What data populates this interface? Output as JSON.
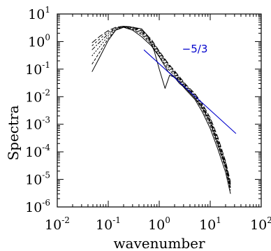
{
  "chart_data": {
    "type": "line",
    "title": "",
    "xlabel": "wavenumber",
    "ylabel": "Spectra",
    "xscale": "log",
    "yscale": "log",
    "xlim": [
      0.01,
      100
    ],
    "ylim": [
      1e-06,
      10
    ],
    "grid": false,
    "x_ticks": [
      {
        "base": "10",
        "exp": "-2",
        "value": 0.01
      },
      {
        "base": "10",
        "exp": "-1",
        "value": 0.1
      },
      {
        "base": "10",
        "exp": "0",
        "value": 1
      },
      {
        "base": "10",
        "exp": "1",
        "value": 10
      },
      {
        "base": "10",
        "exp": "2",
        "value": 100
      }
    ],
    "y_ticks": [
      {
        "base": "10",
        "exp": "-6",
        "value": 1e-06
      },
      {
        "base": "10",
        "exp": "-5",
        "value": 1e-05
      },
      {
        "base": "10",
        "exp": "-4",
        "value": 0.0001
      },
      {
        "base": "10",
        "exp": "-3",
        "value": 0.001
      },
      {
        "base": "10",
        "exp": "-2",
        "value": 0.01
      },
      {
        "base": "10",
        "exp": "-1",
        "value": 0.1
      },
      {
        "base": "10",
        "exp": "0",
        "value": 1
      },
      {
        "base": "10",
        "exp": "1",
        "value": 10
      }
    ],
    "series": [
      {
        "dash": "solid",
        "color": "#000000",
        "x": [
          0.048,
          0.07,
          0.1,
          0.14,
          0.2,
          0.3,
          0.45,
          0.7,
          1,
          1.5,
          2.2,
          3.3,
          5,
          7,
          10,
          14,
          20,
          25
        ],
        "y": [
          0.08,
          0.3,
          1.1,
          2.6,
          3.3,
          2.6,
          1.5,
          0.7,
          0.28,
          0.08,
          0.045,
          0.018,
          0.008,
          0.0028,
          0.0007,
          0.00013,
          1.8e-05,
          3e-06
        ]
      },
      {
        "dash": "4,2",
        "color": "#000000",
        "x": [
          0.048,
          0.07,
          0.1,
          0.14,
          0.2,
          0.3,
          0.45,
          0.7,
          1,
          1.5,
          2.2,
          3.3,
          5,
          7,
          10,
          14,
          20,
          25
        ],
        "y": [
          0.15,
          0.45,
          1.3,
          2.6,
          3.4,
          2.8,
          1.8,
          0.8,
          0.3,
          0.1,
          0.05,
          0.02,
          0.009,
          0.0035,
          0.0009,
          0.00018,
          2.5e-05,
          4e-06
        ]
      },
      {
        "dash": "2,2",
        "color": "#000000",
        "x": [
          0.048,
          0.07,
          0.1,
          0.14,
          0.2,
          0.3,
          0.45,
          0.7,
          1,
          1.5,
          2.2,
          3.3,
          5,
          7,
          10,
          14,
          20,
          25
        ],
        "y": [
          0.3,
          0.7,
          1.6,
          2.8,
          3.4,
          3.0,
          2.0,
          0.9,
          0.35,
          0.12,
          0.055,
          0.022,
          0.01,
          0.004,
          0.0011,
          0.00022,
          3e-05,
          5e-06
        ]
      },
      {
        "dash": "6,2,2,2",
        "color": "#000000",
        "x": [
          0.048,
          0.07,
          0.1,
          0.14,
          0.2,
          0.3,
          0.45,
          0.7,
          1,
          1.5,
          2.2,
          3.3,
          5,
          7,
          10,
          14,
          20,
          25
        ],
        "y": [
          0.5,
          1.0,
          1.9,
          3.0,
          3.5,
          3.2,
          2.2,
          1.0,
          0.4,
          0.14,
          0.06,
          0.024,
          0.011,
          0.0045,
          0.0013,
          0.00026,
          3.5e-05,
          6e-06
        ]
      },
      {
        "dash": "3,3",
        "color": "#000000",
        "x": [
          0.048,
          0.07,
          0.1,
          0.14,
          0.2,
          0.3,
          0.45,
          0.7,
          1,
          1.5,
          2.2,
          3.3,
          5,
          7,
          10,
          14,
          20,
          25
        ],
        "y": [
          0.7,
          1.3,
          2.2,
          3.1,
          3.6,
          3.3,
          2.4,
          1.1,
          0.42,
          0.15,
          0.065,
          0.026,
          0.012,
          0.005,
          0.0015,
          0.0003,
          4e-05,
          7e-06
        ]
      },
      {
        "dash": "8,3",
        "color": "#000000",
        "x": [
          0.048,
          0.07,
          0.1,
          0.14,
          0.2,
          0.3,
          0.45,
          0.7,
          1,
          1.5,
          2.2,
          3.3,
          5,
          7,
          10,
          14,
          20,
          25
        ],
        "y": [
          0.9,
          1.6,
          2.5,
          3.3,
          3.6,
          3.4,
          2.6,
          1.2,
          0.45,
          0.16,
          0.07,
          0.028,
          0.013,
          0.0055,
          0.0017,
          0.00035,
          4.5e-05,
          8e-06
        ]
      },
      {
        "dash": "solid",
        "color": "#000000",
        "x": [
          0.2,
          0.3,
          0.45,
          0.6,
          0.8,
          1,
          1.3,
          1.6,
          2,
          2.5,
          3.3,
          5,
          7,
          10,
          14,
          20,
          25
        ],
        "y": [
          3.4,
          3.3,
          2.9,
          1.6,
          0.45,
          0.1,
          0.02,
          0.06,
          0.05,
          0.03,
          0.02,
          0.009,
          0.004,
          0.0012,
          0.0002,
          3e-05,
          5e-06
        ]
      }
    ],
    "reference_line": {
      "x": [
        0.5,
        32
      ],
      "y": [
        0.5,
        0.00046
      ],
      "color": "#0000cc",
      "label": "−5/3",
      "label_at": {
        "x": 5,
        "y": 0.4
      }
    }
  }
}
